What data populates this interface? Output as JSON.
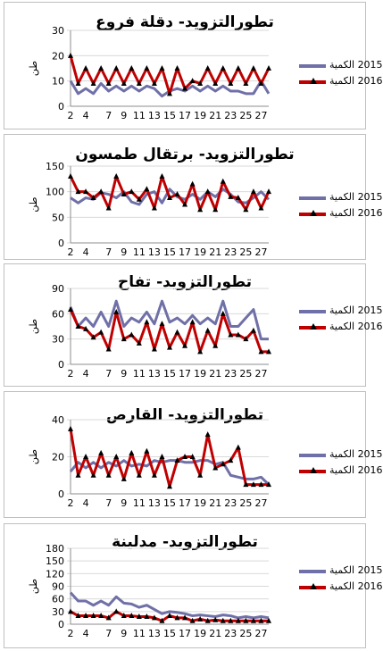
{
  "legend": {
    "s2015": "2015 الكمية",
    "s2016": "2016 الكمية"
  },
  "colors": {
    "s2015": "#7070a8",
    "s2016": "#c00000",
    "marker": "#000000",
    "grid": "#d9d9d9"
  },
  "chart_data": [
    {
      "type": "line",
      "title": "تطورالتزويد- دقلة فروع",
      "ylabel": "طن",
      "ylim": [
        0,
        30
      ],
      "yticks": [
        0,
        10,
        20,
        30
      ],
      "x": [
        2,
        3,
        4,
        5,
        6,
        7,
        8,
        9,
        10,
        11,
        12,
        13,
        14,
        15,
        16,
        17,
        18,
        19,
        20,
        21,
        22,
        23,
        24,
        25,
        26,
        27,
        28
      ],
      "xtick_labels": [
        2,
        4,
        7,
        9,
        11,
        13,
        15,
        17,
        19,
        21,
        23,
        25,
        27
      ],
      "series": [
        {
          "name": "2015 الكمية",
          "values": [
            10,
            5,
            7,
            5,
            9,
            6,
            8,
            6,
            8,
            6,
            8,
            7,
            4,
            6,
            7,
            6,
            8,
            6,
            8,
            6,
            8,
            6,
            6,
            5,
            5,
            10,
            5
          ]
        },
        {
          "name": "2016 الكمية",
          "values": [
            20,
            9,
            15,
            9,
            15,
            9,
            15,
            9,
            15,
            9,
            15,
            9,
            15,
            5,
            15,
            7,
            10,
            9,
            15,
            9,
            15,
            9,
            15,
            9,
            15,
            9,
            15
          ]
        }
      ]
    },
    {
      "type": "line",
      "title": "تطورالتزويد- برتقال طمسون",
      "ylabel": "طن",
      "ylim": [
        0,
        150
      ],
      "yticks": [
        0,
        50,
        100,
        150
      ],
      "x": [
        2,
        3,
        4,
        5,
        6,
        7,
        8,
        9,
        10,
        11,
        12,
        13,
        14,
        15,
        16,
        17,
        18,
        19,
        20,
        21,
        22,
        23,
        24,
        25,
        26,
        27,
        28
      ],
      "xtick_labels": [
        2,
        4,
        7,
        9,
        11,
        13,
        15,
        17,
        19,
        21,
        23,
        25,
        27
      ],
      "series": [
        {
          "name": "2015 الكمية",
          "values": [
            88,
            78,
            88,
            85,
            98,
            95,
            88,
            100,
            80,
            75,
            95,
            100,
            78,
            105,
            90,
            85,
            95,
            85,
            100,
            90,
            105,
            95,
            80,
            78,
            88,
            100,
            85
          ]
        },
        {
          "name": "2016 الكمية",
          "values": [
            130,
            100,
            100,
            88,
            100,
            68,
            130,
            95,
            100,
            85,
            105,
            68,
            130,
            88,
            95,
            75,
            115,
            65,
            100,
            65,
            120,
            90,
            88,
            65,
            100,
            68,
            100
          ]
        }
      ]
    },
    {
      "type": "line",
      "title": "تطورالتزويد- تفاح",
      "ylabel": "طن",
      "ylim": [
        0,
        90
      ],
      "yticks": [
        0,
        30,
        60,
        90
      ],
      "x": [
        2,
        3,
        4,
        5,
        6,
        7,
        8,
        9,
        10,
        11,
        12,
        13,
        14,
        15,
        16,
        17,
        18,
        19,
        20,
        21,
        22,
        23,
        24,
        25,
        26,
        27,
        28
      ],
      "xtick_labels": [
        2,
        4,
        7,
        9,
        11,
        13,
        15,
        17,
        19,
        21,
        23,
        25,
        27
      ],
      "series": [
        {
          "name": "2015 الكمية",
          "values": [
            68,
            45,
            55,
            45,
            62,
            45,
            75,
            45,
            55,
            50,
            62,
            48,
            75,
            50,
            55,
            48,
            58,
            48,
            55,
            48,
            75,
            45,
            45,
            55,
            65,
            30,
            30
          ]
        },
        {
          "name": "2016 الكمية",
          "values": [
            65,
            45,
            42,
            32,
            38,
            18,
            62,
            30,
            35,
            25,
            50,
            18,
            48,
            20,
            38,
            22,
            50,
            15,
            40,
            22,
            60,
            35,
            35,
            30,
            40,
            15,
            15
          ]
        }
      ]
    },
    {
      "type": "line",
      "title": "تطورالتزويد- القارص",
      "ylabel": "طن",
      "ylim": [
        0,
        40
      ],
      "yticks": [
        0,
        20,
        40
      ],
      "x": [
        2,
        3,
        4,
        5,
        6,
        7,
        8,
        9,
        10,
        11,
        12,
        13,
        14,
        15,
        16,
        17,
        18,
        19,
        20,
        21,
        22,
        23,
        24,
        25,
        26,
        27,
        28
      ],
      "xtick_labels": [
        2,
        4,
        7,
        9,
        11,
        13,
        15,
        17,
        19,
        21,
        23,
        25,
        27
      ],
      "series": [
        {
          "name": "2015 الكمية",
          "values": [
            12,
            17,
            14,
            17,
            14,
            17,
            15,
            18,
            15,
            16,
            15,
            18,
            17,
            18,
            18,
            17,
            17,
            18,
            18,
            16,
            17,
            10,
            9,
            8,
            8,
            9,
            5
          ]
        },
        {
          "name": "2016 الكمية",
          "values": [
            35,
            10,
            20,
            10,
            22,
            10,
            20,
            8,
            22,
            10,
            23,
            10,
            20,
            4,
            18,
            20,
            20,
            10,
            32,
            14,
            16,
            18,
            25,
            5,
            5,
            5,
            5
          ]
        }
      ]
    },
    {
      "type": "line",
      "title": "تطورالتزويد- مدلينة",
      "ylabel": "طن",
      "ylim": [
        0,
        180
      ],
      "yticks": [
        0,
        30,
        60,
        90,
        120,
        150,
        180
      ],
      "x": [
        2,
        3,
        4,
        5,
        6,
        7,
        8,
        9,
        10,
        11,
        12,
        13,
        14,
        15,
        16,
        17,
        18,
        19,
        20,
        21,
        22,
        23,
        24,
        25,
        26,
        27,
        28
      ],
      "xtick_labels": [
        2,
        4,
        7,
        9,
        11,
        13,
        15,
        17,
        19,
        21,
        23,
        25,
        27
      ],
      "series": [
        {
          "name": "2015 الكمية",
          "values": [
            75,
            55,
            55,
            45,
            55,
            45,
            65,
            50,
            48,
            40,
            45,
            35,
            25,
            30,
            28,
            25,
            20,
            22,
            20,
            18,
            22,
            20,
            15,
            18,
            15,
            18,
            15
          ]
        },
        {
          "name": "2016 الكمية",
          "values": [
            30,
            20,
            20,
            20,
            20,
            15,
            30,
            20,
            20,
            18,
            18,
            15,
            8,
            20,
            15,
            15,
            8,
            12,
            8,
            10,
            8,
            8,
            8,
            8,
            8,
            8,
            8
          ]
        }
      ]
    }
  ]
}
